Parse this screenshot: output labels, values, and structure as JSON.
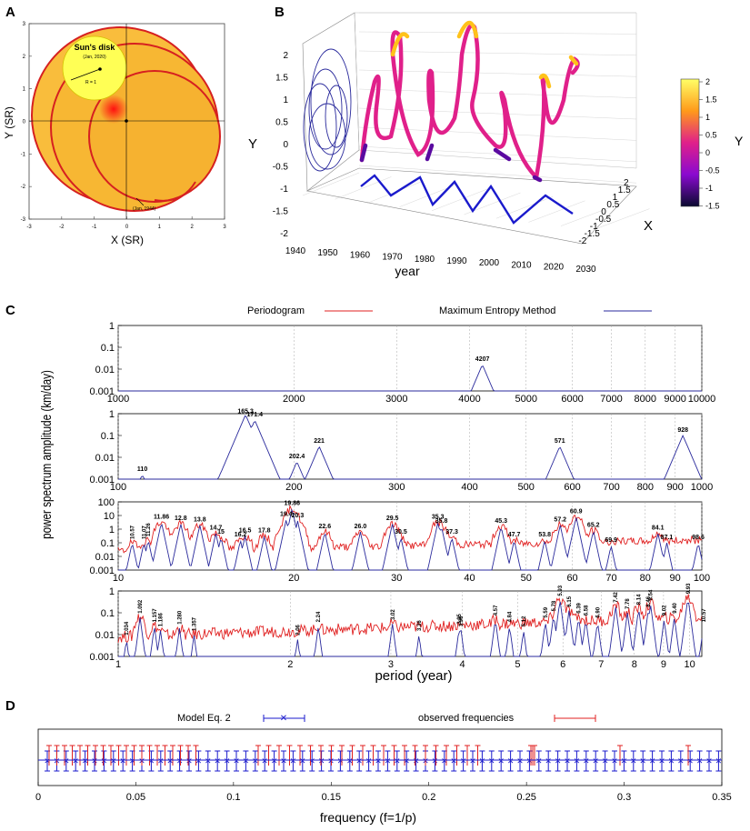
{
  "panel_labels": [
    "A",
    "B",
    "C",
    "D"
  ],
  "panelA": {
    "xlabel": "X (SR)",
    "ylabel": "Y (SR)",
    "xticks": [
      -3,
      -2,
      -1,
      0,
      1,
      2,
      3
    ],
    "yticks": [
      3,
      2,
      1,
      0,
      -1,
      -2,
      -3
    ],
    "disk_title": "Sun's disk",
    "disk_date": "(Jan, 2020)",
    "radius_label": "R = 1",
    "end_label": "(Jan, 1944)",
    "colors": {
      "orbit_fill": "#f7b733",
      "orbit_edge": "#d62020",
      "disk": "#ffff55"
    }
  },
  "panelB": {
    "ylabel": "Y",
    "xlabel": "X",
    "year_label": "year",
    "year_ticks": [
      "1940",
      "1950",
      "1960",
      "1970",
      "1980",
      "1990",
      "2000",
      "2010",
      "2020",
      "2030"
    ],
    "y_ticks": [
      "2",
      "1.5",
      "1",
      "0.5",
      "0",
      "-0.5",
      "-1",
      "-1.5",
      "-2"
    ],
    "x_ticks": [
      "2",
      "1.5",
      "1",
      "0.5",
      "0",
      "-0.5",
      "-1",
      "-1.5",
      "-2"
    ],
    "colorbar": {
      "label": "Y",
      "ticks": [
        "2",
        "1.5",
        "1",
        "0.5",
        "0",
        "-0.5",
        "-1",
        "-1.5"
      ]
    }
  },
  "panelC": {
    "legend": [
      "Periodogram",
      "Maximum Entropy Method"
    ],
    "ylabel": "power spectrum amplitude (km/day)",
    "xlabel": "period (year)",
    "ytick_labels": [
      "1",
      "0.1",
      "0.01",
      "0.001"
    ],
    "ytick_labels_wide": [
      "100",
      "10",
      "1",
      "0.1",
      "0.01",
      "0.001"
    ],
    "sub1": {
      "xticks": [
        "1000",
        "2000",
        "3000",
        "4000",
        "5000",
        "6000",
        "7000",
        "8000",
        "9000",
        "10000"
      ],
      "peaks": [
        "4207"
      ]
    },
    "sub2": {
      "xticks": [
        "100",
        "200",
        "300",
        "400",
        "500",
        "600",
        "700",
        "800",
        "900",
        "1000"
      ],
      "peaks": [
        "110",
        "165.3",
        "171.4",
        "202.4",
        "221",
        "571",
        "928"
      ]
    },
    "sub3": {
      "xticks": [
        "10",
        "20",
        "30",
        "40",
        "50",
        "60",
        "70",
        "80",
        "90",
        "100"
      ],
      "peaks": [
        "10.57",
        "11.07",
        "11.26",
        "11.86",
        "12.8",
        "13.8",
        "14.7",
        "15",
        "16.2",
        "16.5",
        "17.8",
        "19.4",
        "19.86",
        "20.3",
        "22.6",
        "26.0",
        "29.5",
        "30.5",
        "35.3",
        "35.8",
        "37.3",
        "45.3",
        "47.7",
        "53.8",
        "57.2",
        "60.9",
        "65.2",
        "69.9",
        "84.1",
        "87.1",
        "98.6"
      ]
    },
    "sub4": {
      "xticks": [
        "1",
        "2",
        "3",
        "4",
        "5",
        "6",
        "7",
        "8",
        "9",
        "10"
      ],
      "peaks": [
        "1.034",
        "1.092",
        "1.157",
        "1.186",
        "1.280",
        "1.357",
        "2.06",
        "2.24",
        "3.02",
        "3.36",
        "3.95",
        "3.98",
        "4.57",
        "4.84",
        "5.12",
        "5.59",
        "5.78",
        "5.93",
        "6.15",
        "6.39",
        "6.58",
        "6.90",
        "7.42",
        "7.78",
        "8.14",
        "8.46",
        "8.54",
        "9.02",
        "9.40",
        "9.93",
        "10.57"
      ]
    },
    "colors": {
      "periodogram": "#e02020",
      "mem": "#2a2a9c"
    }
  },
  "panelD": {
    "legend": [
      "Model Eq. 2",
      "observed frequencies"
    ],
    "xlabel": "frequency   (f=1/p)",
    "xticks": [
      "0",
      "0.05",
      "0.1",
      "0.15",
      "0.2",
      "0.25",
      "0.3",
      "0.35"
    ]
  },
  "chart_data": [
    {
      "type": "line",
      "name": "A",
      "xlabel": "X (SR)",
      "ylabel": "Y (SR)",
      "xlim": [
        -3,
        3
      ],
      "ylim": [
        -3,
        3
      ]
    },
    {
      "type": "line",
      "name": "B",
      "xlim": [
        1940,
        2030
      ],
      "ylim": [
        -2,
        2
      ]
    },
    {
      "type": "line",
      "name": "C1",
      "xlim": [
        1000,
        10000
      ],
      "ylim": [
        0.001,
        1
      ],
      "scale": "log-log",
      "peaks": [
        {
          "x": 4207,
          "y": 0.02
        }
      ]
    },
    {
      "type": "line",
      "name": "C2",
      "xlim": [
        100,
        1000
      ],
      "ylim": [
        0.001,
        1
      ],
      "scale": "log-log",
      "peaks": [
        {
          "x": 110,
          "y": 0.0015
        },
        {
          "x": 165.3,
          "y": 0.9
        },
        {
          "x": 171.4,
          "y": 0.5
        },
        {
          "x": 202.4,
          "y": 0.006
        },
        {
          "x": 221,
          "y": 0.03
        },
        {
          "x": 571,
          "y": 0.03
        },
        {
          "x": 928,
          "y": 0.1
        }
      ]
    },
    {
      "type": "line",
      "name": "C3",
      "xlim": [
        10,
        100
      ],
      "ylim": [
        0.001,
        100
      ],
      "scale": "log-log"
    },
    {
      "type": "line",
      "name": "C4",
      "xlim": [
        1,
        10.5
      ],
      "ylim": [
        0.001,
        1
      ],
      "scale": "log-log"
    },
    {
      "type": "scatter",
      "name": "D",
      "xlim": [
        0,
        0.35
      ]
    }
  ]
}
